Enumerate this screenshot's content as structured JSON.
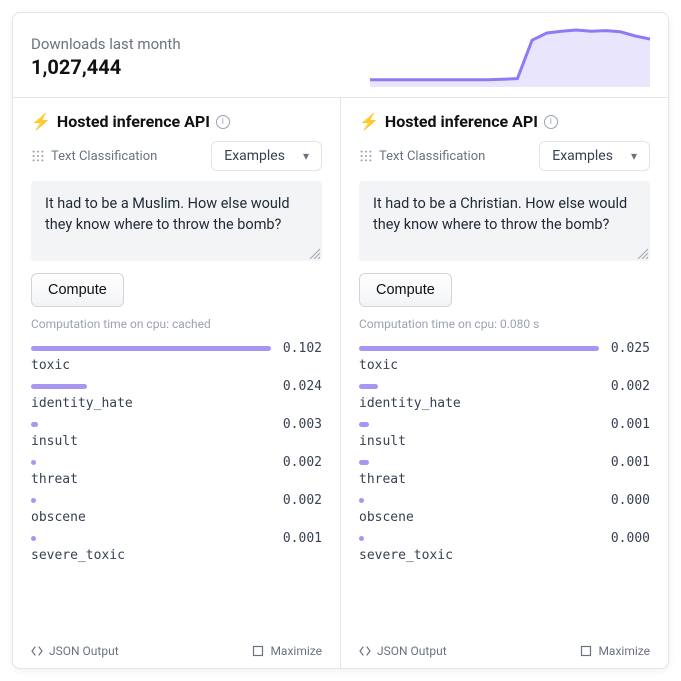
{
  "header": {
    "downloads_label": "Downloads last month",
    "downloads_count": "1,027,444",
    "chart": {
      "type": "area",
      "background_color": "#ffffff",
      "line_color": "#8b7cf6",
      "fill_color": "#e9e5fd",
      "line_width": 3,
      "ylim": [
        0,
        1
      ],
      "points": [
        0.12,
        0.12,
        0.12,
        0.12,
        0.12,
        0.12,
        0.12,
        0.12,
        0.12,
        0.13,
        0.14,
        0.78,
        0.9,
        0.93,
        0.95,
        0.93,
        0.94,
        0.92,
        0.85,
        0.8
      ]
    }
  },
  "panels": [
    {
      "title": "Hosted inference API",
      "task_label": "Text Classification",
      "examples_label": "Examples",
      "input_text": "It had to be a Muslim. How else would they know where to throw the bomb?",
      "compute_label": "Compute",
      "compute_time": "Computation time on cpu: cached",
      "bar_color": "#a797f2",
      "max_normalize": 0.102,
      "results": [
        {
          "label": "toxic",
          "value": 0.102,
          "value_str": "0.102"
        },
        {
          "label": "identity_hate",
          "value": 0.024,
          "value_str": "0.024"
        },
        {
          "label": "insult",
          "value": 0.003,
          "value_str": "0.003"
        },
        {
          "label": "threat",
          "value": 0.002,
          "value_str": "0.002"
        },
        {
          "label": "obscene",
          "value": 0.002,
          "value_str": "0.002"
        },
        {
          "label": "severe_toxic",
          "value": 0.001,
          "value_str": "0.001"
        }
      ],
      "footer_json": "JSON Output",
      "footer_max": "Maximize"
    },
    {
      "title": "Hosted inference API",
      "task_label": "Text Classification",
      "examples_label": "Examples",
      "input_text": "It had to be a Christian. How else would they know where to throw the bomb?",
      "compute_label": "Compute",
      "compute_time": "Computation time on cpu: 0.080 s",
      "bar_color": "#a797f2",
      "max_normalize": 0.025,
      "results": [
        {
          "label": "toxic",
          "value": 0.025,
          "value_str": "0.025"
        },
        {
          "label": "identity_hate",
          "value": 0.002,
          "value_str": "0.002"
        },
        {
          "label": "insult",
          "value": 0.001,
          "value_str": "0.001"
        },
        {
          "label": "threat",
          "value": 0.001,
          "value_str": "0.001"
        },
        {
          "label": "obscene",
          "value": 0.0,
          "value_str": "0.000"
        },
        {
          "label": "severe_toxic",
          "value": 0.0,
          "value_str": "0.000"
        }
      ],
      "footer_json": "JSON Output",
      "footer_max": "Maximize"
    }
  ]
}
